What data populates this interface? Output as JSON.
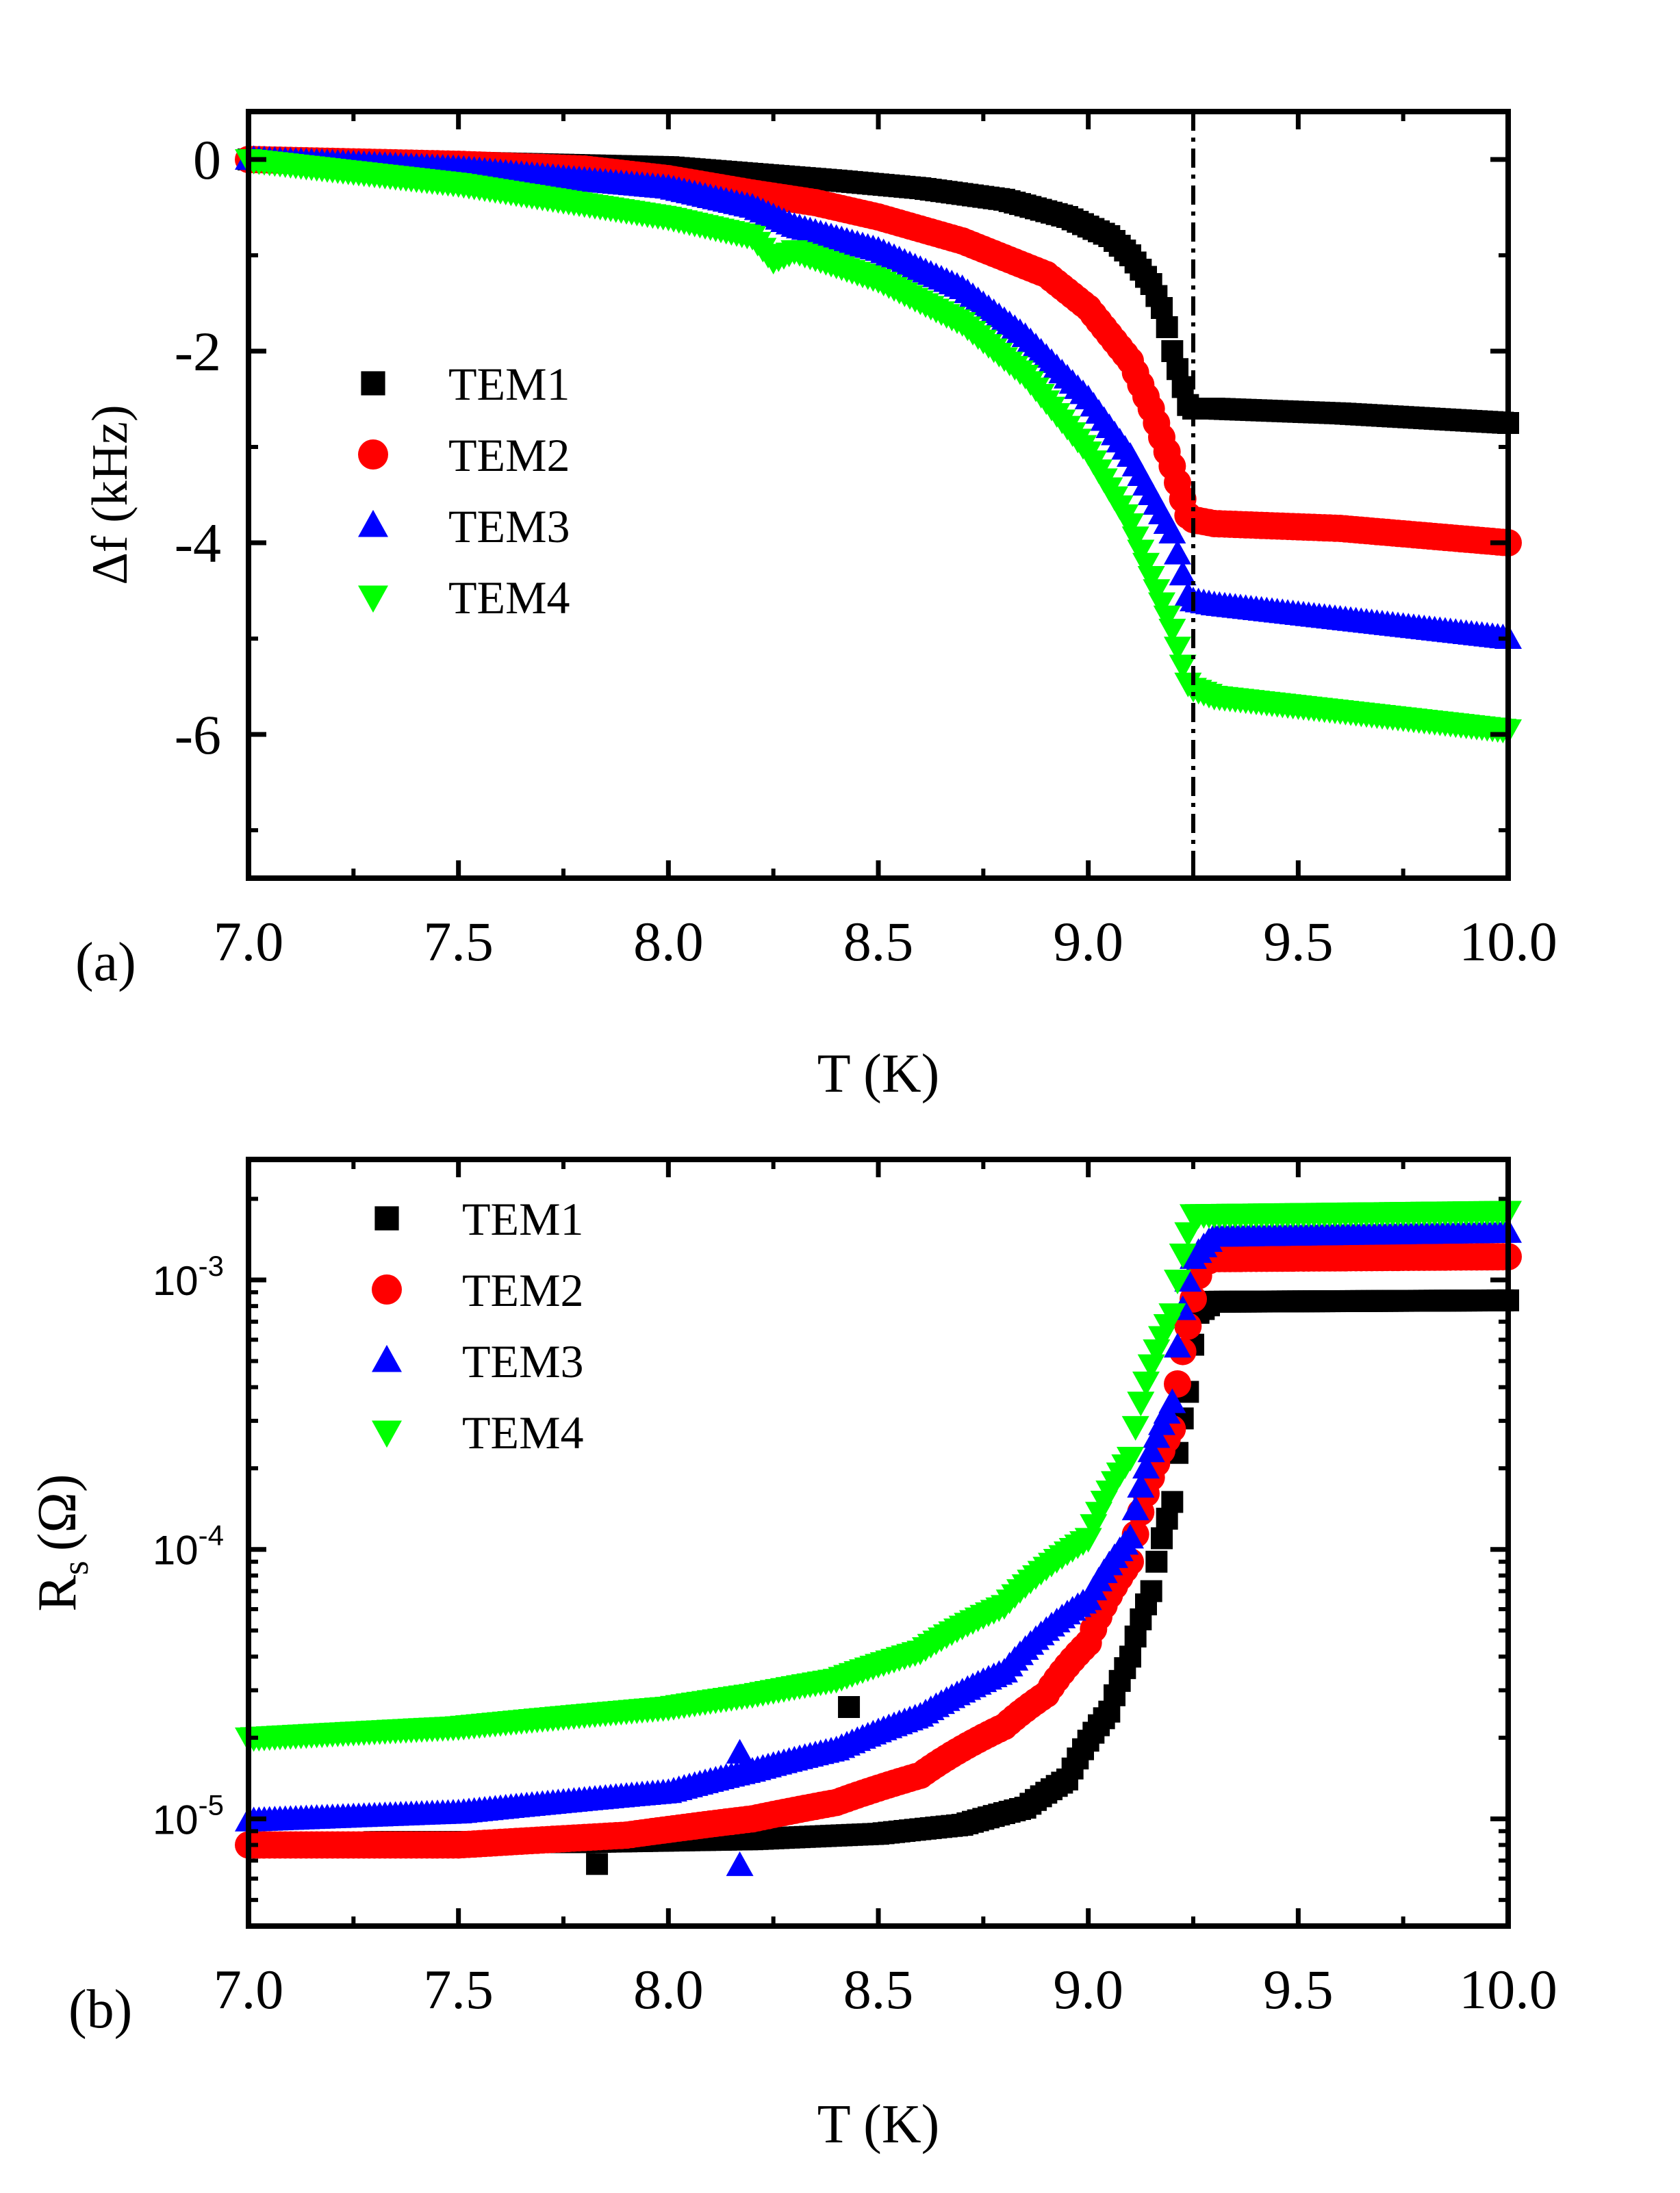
{
  "chart_data": [
    {
      "type": "scatter",
      "panel_label": "(a)",
      "xlabel": "T (K)",
      "ylabel": "Δf (kHz)",
      "xlim": [
        7.0,
        10.0
      ],
      "ylim": [
        -7.5,
        0.5
      ],
      "xticks": [
        "7.0",
        "7.5",
        "8.0",
        "8.5",
        "9.0",
        "9.5",
        "10.0"
      ],
      "xtick_values": [
        7.0,
        7.5,
        8.0,
        8.5,
        9.0,
        9.5,
        10.0
      ],
      "yticks": [
        "0",
        "-2",
        "-4",
        "-6"
      ],
      "ytick_values": [
        0,
        -2,
        -4,
        -6
      ],
      "vline_x": 9.25,
      "legend_position": "center-left",
      "series": [
        {
          "name": "TEM1",
          "marker": "square",
          "color": "#000000",
          "points": [
            [
              7.0,
              0.0
            ],
            [
              7.5,
              -0.03
            ],
            [
              8.0,
              -0.08
            ],
            [
              8.2,
              -0.15
            ],
            [
              8.4,
              -0.22
            ],
            [
              8.6,
              -0.3
            ],
            [
              8.8,
              -0.42
            ],
            [
              8.95,
              -0.6
            ],
            [
              9.05,
              -0.8
            ],
            [
              9.1,
              -1.0
            ],
            [
              9.15,
              -1.3
            ],
            [
              9.18,
              -1.6
            ],
            [
              9.2,
              -2.0
            ],
            [
              9.22,
              -2.3
            ],
            [
              9.24,
              -2.6
            ],
            [
              9.3,
              -2.6
            ],
            [
              9.6,
              -2.65
            ],
            [
              10.0,
              -2.75
            ]
          ]
        },
        {
          "name": "TEM2",
          "marker": "circle",
          "color": "#ff0000",
          "points": [
            [
              7.0,
              0.0
            ],
            [
              7.5,
              -0.05
            ],
            [
              7.8,
              -0.1
            ],
            [
              8.0,
              -0.2
            ],
            [
              8.2,
              -0.35
            ],
            [
              8.35,
              -0.45
            ],
            [
              8.5,
              -0.6
            ],
            [
              8.7,
              -0.85
            ],
            [
              8.9,
              -1.2
            ],
            [
              9.0,
              -1.55
            ],
            [
              9.1,
              -2.1
            ],
            [
              9.15,
              -2.6
            ],
            [
              9.2,
              -3.2
            ],
            [
              9.24,
              -3.75
            ],
            [
              9.3,
              -3.8
            ],
            [
              9.6,
              -3.85
            ],
            [
              10.0,
              -4.0
            ]
          ]
        },
        {
          "name": "TEM3",
          "marker": "triangle-up",
          "color": "#0000ff",
          "points": [
            [
              7.0,
              0.0
            ],
            [
              7.5,
              -0.1
            ],
            [
              8.0,
              -0.3
            ],
            [
              8.2,
              -0.5
            ],
            [
              8.3,
              -0.7
            ],
            [
              8.5,
              -0.95
            ],
            [
              8.7,
              -1.35
            ],
            [
              8.85,
              -1.85
            ],
            [
              9.0,
              -2.5
            ],
            [
              9.1,
              -3.1
            ],
            [
              9.2,
              -3.9
            ],
            [
              9.24,
              -4.6
            ],
            [
              9.3,
              -4.65
            ],
            [
              9.6,
              -4.8
            ],
            [
              10.0,
              -5.0
            ]
          ]
        },
        {
          "name": "TEM4",
          "marker": "triangle-down",
          "color": "#00ff00",
          "points": [
            [
              7.0,
              0.0
            ],
            [
              7.5,
              -0.25
            ],
            [
              8.0,
              -0.6
            ],
            [
              8.2,
              -0.8
            ],
            [
              8.25,
              -1.05
            ],
            [
              8.3,
              -0.95
            ],
            [
              8.4,
              -1.1
            ],
            [
              8.5,
              -1.25
            ],
            [
              8.7,
              -1.7
            ],
            [
              8.85,
              -2.25
            ],
            [
              9.0,
              -3.05
            ],
            [
              9.1,
              -3.8
            ],
            [
              9.2,
              -4.9
            ],
            [
              9.24,
              -5.5
            ],
            [
              9.3,
              -5.6
            ],
            [
              9.6,
              -5.75
            ],
            [
              10.0,
              -5.95
            ]
          ]
        }
      ]
    },
    {
      "type": "scatter",
      "panel_label": "(b)",
      "xlabel": "T (K)",
      "ylabel": "R",
      "ylabel_subscript": "s",
      "ylabel_unit": "(Ω)",
      "yscale": "log",
      "xlim": [
        7.0,
        10.0
      ],
      "ylim": [
        4e-06,
        0.0028
      ],
      "xticks": [
        "7.0",
        "7.5",
        "8.0",
        "8.5",
        "9.0",
        "9.5",
        "10.0"
      ],
      "xtick_values": [
        7.0,
        7.5,
        8.0,
        8.5,
        9.0,
        9.5,
        10.0
      ],
      "yticks": [
        {
          "base": "10",
          "exp": "-5",
          "value": 1e-05
        },
        {
          "base": "10",
          "exp": "-4",
          "value": 0.0001
        },
        {
          "base": "10",
          "exp": "-3",
          "value": 0.001
        }
      ],
      "legend_position": "top-left",
      "series": [
        {
          "name": "TEM1",
          "marker": "square",
          "color": "#000000",
          "points": [
            [
              7.3,
              8.2e-06
            ],
            [
              7.8,
              8.2e-06
            ],
            [
              8.2,
              8.4e-06
            ],
            [
              8.5,
              8.8e-06
            ],
            [
              8.7,
              9.5e-06
            ],
            [
              8.85,
              1.1e-05
            ],
            [
              8.95,
              1.4e-05
            ],
            [
              9.05,
              2.5e-05
            ],
            [
              9.1,
              4e-05
            ],
            [
              9.15,
              7e-05
            ],
            [
              9.2,
              0.00015
            ],
            [
              9.24,
              0.0004
            ],
            [
              9.26,
              0.00075
            ],
            [
              9.3,
              0.00083
            ],
            [
              10.0,
              0.00084
            ]
          ],
          "outliers": [
            [
              7.83,
              6.8e-06
            ],
            [
              8.43,
              2.6e-05
            ]
          ]
        },
        {
          "name": "TEM2",
          "marker": "circle",
          "color": "#ff0000",
          "points": [
            [
              7.0,
              8e-06
            ],
            [
              7.5,
              8e-06
            ],
            [
              7.9,
              8.7e-06
            ],
            [
              8.2,
              1e-05
            ],
            [
              8.4,
              1.15e-05
            ],
            [
              8.6,
              1.45e-05
            ],
            [
              8.8,
              2.2e-05
            ],
            [
              8.9,
              2.9e-05
            ],
            [
              9.0,
              4.5e-05
            ],
            [
              9.1,
              9e-05
            ],
            [
              9.2,
              0.00028
            ],
            [
              9.24,
              0.0007
            ],
            [
              9.27,
              0.00115
            ],
            [
              9.3,
              0.0012
            ],
            [
              10.0,
              0.00122
            ]
          ]
        },
        {
          "name": "TEM3",
          "marker": "triangle-up",
          "color": "#0000ff",
          "points": [
            [
              7.0,
              9.8e-06
            ],
            [
              7.5,
              1.05e-05
            ],
            [
              8.0,
              1.25e-05
            ],
            [
              8.2,
              1.5e-05
            ],
            [
              8.4,
              1.8e-05
            ],
            [
              8.6,
              2.4e-05
            ],
            [
              8.8,
              3.5e-05
            ],
            [
              9.0,
              6.5e-05
            ],
            [
              9.1,
              0.00011
            ],
            [
              9.2,
              0.00035
            ],
            [
              9.25,
              0.0012
            ],
            [
              9.3,
              0.00145
            ],
            [
              10.0,
              0.0015
            ]
          ],
          "outliers": [
            [
              8.17,
              1.75e-05
            ],
            [
              8.17,
              6.7e-06
            ]
          ]
        },
        {
          "name": "TEM4",
          "marker": "triangle-down",
          "color": "#00ff00",
          "points": [
            [
              7.0,
              2e-05
            ],
            [
              7.5,
              2.2e-05
            ],
            [
              8.0,
              2.6e-05
            ],
            [
              8.2,
              2.9e-05
            ],
            [
              8.4,
              3.3e-05
            ],
            [
              8.6,
              4.2e-05
            ],
            [
              8.8,
              6.2e-05
            ],
            [
              9.0,
              0.00011
            ],
            [
              9.1,
              0.00022
            ],
            [
              9.2,
              0.00075
            ],
            [
              9.25,
              0.00175
            ],
            [
              10.0,
              0.0018
            ]
          ]
        }
      ]
    }
  ]
}
